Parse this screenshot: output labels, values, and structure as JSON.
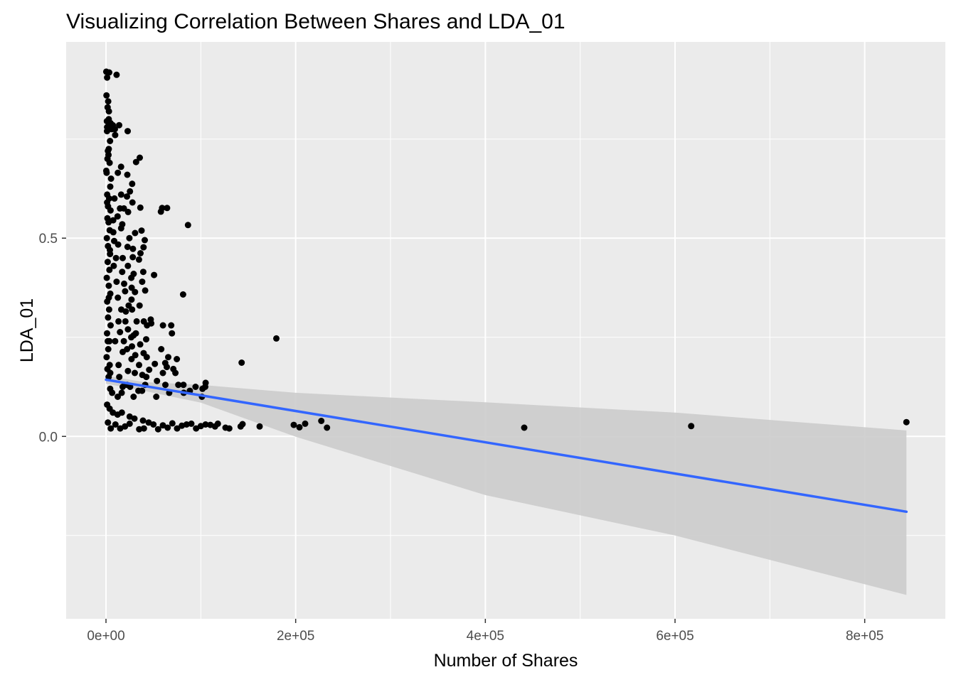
{
  "chart_data": {
    "type": "scatter",
    "title": "Visualizing Correlation Between Shares and LDA_01",
    "xlabel": "Number of Shares",
    "ylabel": "LDA_01",
    "xlim": [
      -42000,
      885000
    ],
    "ylim": [
      -0.46,
      0.995
    ],
    "x_ticks": [
      0,
      200000,
      400000,
      600000,
      800000
    ],
    "x_tick_labels": [
      "0e+00",
      "2e+05",
      "4e+05",
      "6e+05",
      "8e+05"
    ],
    "y_ticks": [
      0.0,
      0.5
    ],
    "y_tick_labels": [
      "0.0",
      "0.5"
    ],
    "x_minor_ticks": [
      -100000,
      100000,
      300000,
      500000,
      700000
    ],
    "y_minor_ticks": [
      -0.25,
      0.25,
      0.75
    ],
    "grid": true,
    "background": "#EBEBEB",
    "point_color": "#000000",
    "points": [
      [
        300,
        0.92
      ],
      [
        1200,
        0.905
      ],
      [
        3400,
        0.918
      ],
      [
        11200,
        0.912
      ],
      [
        500,
        0.86
      ],
      [
        2300,
        0.845
      ],
      [
        1700,
        0.83
      ],
      [
        3100,
        0.82
      ],
      [
        2900,
        0.8
      ],
      [
        1000,
        0.795
      ],
      [
        7200,
        0.785
      ],
      [
        1200,
        0.78
      ],
      [
        6100,
        0.775
      ],
      [
        9400,
        0.775
      ],
      [
        4900,
        0.79
      ],
      [
        13900,
        0.785
      ],
      [
        22900,
        0.77
      ],
      [
        9700,
        0.76
      ],
      [
        1100,
        0.77
      ],
      [
        4300,
        0.745
      ],
      [
        2900,
        0.725
      ],
      [
        1600,
        0.7
      ],
      [
        300,
        0.67
      ],
      [
        2000,
        0.72
      ],
      [
        3800,
        0.69
      ],
      [
        700,
        0.665
      ],
      [
        5300,
        0.65
      ],
      [
        4500,
        0.63
      ],
      [
        1300,
        0.61
      ],
      [
        3300,
        0.6
      ],
      [
        2200,
        0.58
      ],
      [
        4800,
        0.57
      ],
      [
        1500,
        0.55
      ],
      [
        2700,
        0.54
      ],
      [
        3900,
        0.52
      ],
      [
        900,
        0.5
      ],
      [
        2100,
        0.48
      ],
      [
        4300,
        0.46
      ],
      [
        1800,
        0.44
      ],
      [
        3600,
        0.42
      ],
      [
        800,
        0.4
      ],
      [
        2900,
        0.38
      ],
      [
        4600,
        0.36
      ],
      [
        1300,
        0.34
      ],
      [
        3300,
        0.32
      ],
      [
        2200,
        0.3
      ],
      [
        4900,
        0.28
      ],
      [
        1100,
        0.26
      ],
      [
        3600,
        0.24
      ],
      [
        2400,
        0.22
      ],
      [
        700,
        0.2
      ],
      [
        3900,
        0.18
      ],
      [
        1500,
        0.17
      ],
      [
        4500,
        0.16
      ],
      [
        2800,
        0.15
      ],
      [
        1900,
        0.24
      ],
      [
        3000,
        0.35
      ],
      [
        4100,
        0.47
      ],
      [
        1200,
        0.59
      ],
      [
        2600,
        0.71
      ],
      [
        12500,
        0.665
      ],
      [
        18900,
        0.575
      ],
      [
        22500,
        0.66
      ],
      [
        15900,
        0.68
      ],
      [
        22100,
        0.605
      ],
      [
        35600,
        0.703
      ],
      [
        31700,
        0.692
      ],
      [
        27600,
        0.637
      ],
      [
        25300,
        0.618
      ],
      [
        16000,
        0.61
      ],
      [
        8900,
        0.6
      ],
      [
        27900,
        0.59
      ],
      [
        14800,
        0.575
      ],
      [
        36200,
        0.577
      ],
      [
        59200,
        0.576
      ],
      [
        57900,
        0.567
      ],
      [
        64400,
        0.576
      ],
      [
        23300,
        0.566
      ],
      [
        12200,
        0.555
      ],
      [
        7600,
        0.545
      ],
      [
        17200,
        0.535
      ],
      [
        7700,
        0.515
      ],
      [
        37500,
        0.519
      ],
      [
        86500,
        0.533
      ],
      [
        16000,
        0.525
      ],
      [
        30700,
        0.513
      ],
      [
        40900,
        0.495
      ],
      [
        24700,
        0.5
      ],
      [
        8600,
        0.493
      ],
      [
        12800,
        0.484
      ],
      [
        28400,
        0.473
      ],
      [
        22700,
        0.478
      ],
      [
        39600,
        0.477
      ],
      [
        36400,
        0.462
      ],
      [
        28300,
        0.452
      ],
      [
        34800,
        0.446
      ],
      [
        10600,
        0.45
      ],
      [
        17600,
        0.45
      ],
      [
        8200,
        0.43
      ],
      [
        23100,
        0.43
      ],
      [
        39300,
        0.415
      ],
      [
        17100,
        0.415
      ],
      [
        29200,
        0.41
      ],
      [
        50700,
        0.407
      ],
      [
        26700,
        0.4
      ],
      [
        38200,
        0.39
      ],
      [
        11200,
        0.39
      ],
      [
        19100,
        0.385
      ],
      [
        27100,
        0.375
      ],
      [
        41300,
        0.368
      ],
      [
        20200,
        0.366
      ],
      [
        30600,
        0.364
      ],
      [
        81300,
        0.358
      ],
      [
        12500,
        0.35
      ],
      [
        26900,
        0.345
      ],
      [
        23900,
        0.33
      ],
      [
        35400,
        0.33
      ],
      [
        16100,
        0.32
      ],
      [
        27500,
        0.32
      ],
      [
        20900,
        0.315
      ],
      [
        47200,
        0.295
      ],
      [
        39900,
        0.29
      ],
      [
        32300,
        0.29
      ],
      [
        20500,
        0.29
      ],
      [
        13200,
        0.29
      ],
      [
        68800,
        0.28
      ],
      [
        60100,
        0.28
      ],
      [
        43300,
        0.28
      ],
      [
        47700,
        0.285
      ],
      [
        23200,
        0.27
      ],
      [
        14800,
        0.263
      ],
      [
        69500,
        0.26
      ],
      [
        31500,
        0.26
      ],
      [
        29200,
        0.255
      ],
      [
        26600,
        0.25
      ],
      [
        42400,
        0.245
      ],
      [
        179600,
        0.247
      ],
      [
        18800,
        0.24
      ],
      [
        9700,
        0.24
      ],
      [
        36100,
        0.232
      ],
      [
        27400,
        0.227
      ],
      [
        58300,
        0.22
      ],
      [
        22200,
        0.22
      ],
      [
        17600,
        0.213
      ],
      [
        39700,
        0.21
      ],
      [
        30900,
        0.205
      ],
      [
        43000,
        0.2
      ],
      [
        65600,
        0.2
      ],
      [
        74700,
        0.195
      ],
      [
        26900,
        0.195
      ],
      [
        62500,
        0.185
      ],
      [
        51500,
        0.183
      ],
      [
        34900,
        0.18
      ],
      [
        143000,
        0.186
      ],
      [
        13300,
        0.18
      ],
      [
        64100,
        0.175
      ],
      [
        71000,
        0.17
      ],
      [
        45500,
        0.168
      ],
      [
        23200,
        0.165
      ],
      [
        30400,
        0.16
      ],
      [
        60000,
        0.16
      ],
      [
        73200,
        0.16
      ],
      [
        38300,
        0.155
      ],
      [
        42500,
        0.15
      ],
      [
        14000,
        0.15
      ],
      [
        53800,
        0.14
      ],
      [
        105100,
        0.135
      ],
      [
        81700,
        0.13
      ],
      [
        76300,
        0.13
      ],
      [
        62600,
        0.13
      ],
      [
        41300,
        0.13
      ],
      [
        22100,
        0.13
      ],
      [
        104600,
        0.125
      ],
      [
        17600,
        0.125
      ],
      [
        25400,
        0.125
      ],
      [
        94400,
        0.125
      ],
      [
        101800,
        0.12
      ],
      [
        88400,
        0.115
      ],
      [
        34200,
        0.115
      ],
      [
        4400,
        0.12
      ],
      [
        38000,
        0.115
      ],
      [
        82000,
        0.11
      ],
      [
        66700,
        0.11
      ],
      [
        16600,
        0.11
      ],
      [
        6500,
        0.11
      ],
      [
        12400,
        0.1
      ],
      [
        29100,
        0.1
      ],
      [
        53000,
        0.1
      ],
      [
        101200,
        0.1
      ],
      [
        1200,
        0.08
      ],
      [
        3800,
        0.07
      ],
      [
        7300,
        0.06
      ],
      [
        16700,
        0.06
      ],
      [
        12200,
        0.055
      ],
      [
        25000,
        0.05
      ],
      [
        30000,
        0.045
      ],
      [
        39000,
        0.04
      ],
      [
        45000,
        0.035
      ],
      [
        2000,
        0.035
      ],
      [
        10000,
        0.03
      ],
      [
        25000,
        0.032
      ],
      [
        50000,
        0.03
      ],
      [
        60000,
        0.028
      ],
      [
        70000,
        0.033
      ],
      [
        80000,
        0.027
      ],
      [
        85000,
        0.03
      ],
      [
        90000,
        0.032
      ],
      [
        100000,
        0.026
      ],
      [
        105000,
        0.03
      ],
      [
        110000,
        0.029
      ],
      [
        115000,
        0.025
      ],
      [
        118000,
        0.032
      ],
      [
        126000,
        0.022
      ],
      [
        130000,
        0.02
      ],
      [
        142000,
        0.025
      ],
      [
        144000,
        0.031
      ],
      [
        162000,
        0.025
      ],
      [
        198000,
        0.029
      ],
      [
        204000,
        0.023
      ],
      [
        210000,
        0.032
      ],
      [
        227000,
        0.039
      ],
      [
        233000,
        0.022
      ],
      [
        441000,
        0.022
      ],
      [
        617000,
        0.026
      ],
      [
        844000,
        0.036
      ],
      [
        5000,
        0.02
      ],
      [
        15000,
        0.02
      ],
      [
        20000,
        0.025
      ],
      [
        35000,
        0.018
      ],
      [
        40000,
        0.02
      ],
      [
        55000,
        0.018
      ],
      [
        65000,
        0.022
      ],
      [
        75000,
        0.02
      ],
      [
        95000,
        0.02
      ]
    ],
    "trend_line": {
      "color": "#3366FF",
      "x": [
        0,
        844000
      ],
      "y": [
        0.143,
        -0.19
      ]
    },
    "confidence_band": {
      "color": "#CCCCCC",
      "x": [
        0,
        40000,
        100000,
        200000,
        400000,
        600000,
        844000
      ],
      "y_upper": [
        0.153,
        0.137,
        0.13,
        0.11,
        0.086,
        0.06,
        0.015
      ],
      "y_lower": [
        0.133,
        0.115,
        0.085,
        -0.001,
        -0.148,
        -0.25,
        -0.4
      ]
    }
  }
}
